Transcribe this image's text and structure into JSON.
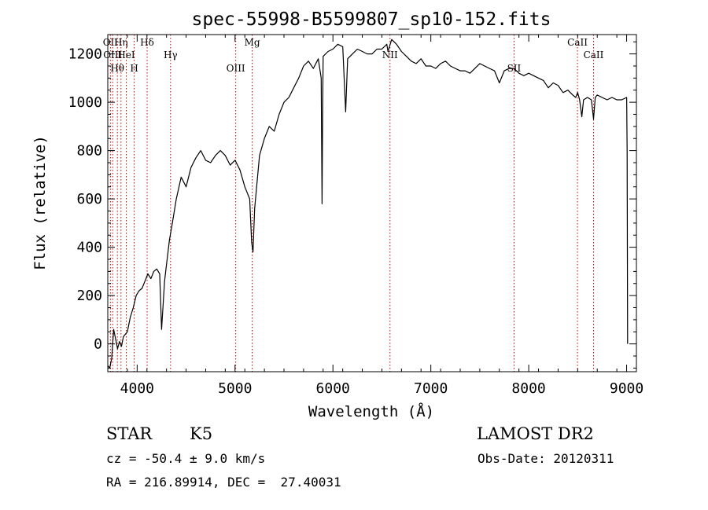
{
  "chart_data": {
    "type": "line",
    "title": "spec-55998-B5599807_sp10-152.fits",
    "xlabel": "Wavelength (Å)",
    "ylabel": "Flux (relative)",
    "xlim": [
      3700,
      9100
    ],
    "ylim": [
      -115,
      1280
    ],
    "xticks": [
      4000,
      5000,
      6000,
      7000,
      8000,
      9000
    ],
    "yticks": [
      0,
      200,
      400,
      600,
      800,
      1000,
      1200
    ],
    "grid": false,
    "series": [
      {
        "x": [
          3700,
          3720,
          3740,
          3760,
          3780,
          3800,
          3820,
          3840,
          3860,
          3880,
          3900,
          3930,
          3960,
          3990,
          4020,
          4050,
          4080,
          4110,
          4140,
          4170,
          4200,
          4230,
          4250,
          4280,
          4300,
          4330,
          4360,
          4400,
          4450,
          4500,
          4550,
          4600,
          4650,
          4700,
          4750,
          4800,
          4850,
          4900,
          4950,
          5000,
          5050,
          5100,
          5150,
          5170,
          5183,
          5200,
          5250,
          5300,
          5350,
          5400,
          5450,
          5500,
          5550,
          5600,
          5650,
          5700,
          5750,
          5800,
          5850,
          5880,
          5889,
          5895,
          5900,
          5950,
          6000,
          6050,
          6100,
          6130,
          6150,
          6200,
          6250,
          6300,
          6350,
          6400,
          6450,
          6500,
          6550,
          6562,
          6600,
          6650,
          6700,
          6750,
          6800,
          6850,
          6900,
          6950,
          7000,
          7050,
          7100,
          7150,
          7200,
          7250,
          7300,
          7350,
          7400,
          7450,
          7500,
          7550,
          7600,
          7650,
          7700,
          7750,
          7800,
          7850,
          7900,
          7950,
          8000,
          8050,
          8100,
          8150,
          8200,
          8250,
          8300,
          8350,
          8400,
          8450,
          8480,
          8500,
          8520,
          8542,
          8560,
          8600,
          8640,
          8662,
          8680,
          8700,
          8750,
          8800,
          8850,
          8900,
          8950,
          9000,
          9005,
          9010
        ],
        "y": [
          -90,
          -100,
          -60,
          60,
          20,
          -20,
          10,
          -10,
          30,
          40,
          50,
          110,
          150,
          200,
          220,
          230,
          260,
          290,
          270,
          300,
          310,
          290,
          60,
          260,
          330,
          430,
          500,
          600,
          690,
          650,
          730,
          770,
          800,
          760,
          750,
          780,
          800,
          780,
          740,
          760,
          720,
          650,
          600,
          420,
          380,
          560,
          780,
          850,
          900,
          880,
          950,
          1000,
          1020,
          1060,
          1100,
          1150,
          1170,
          1140,
          1180,
          1100,
          580,
          1000,
          1190,
          1210,
          1220,
          1240,
          1230,
          960,
          1180,
          1200,
          1220,
          1210,
          1200,
          1200,
          1220,
          1220,
          1240,
          1210,
          1260,
          1240,
          1210,
          1190,
          1170,
          1160,
          1180,
          1150,
          1150,
          1140,
          1160,
          1170,
          1150,
          1140,
          1130,
          1130,
          1120,
          1140,
          1160,
          1150,
          1140,
          1130,
          1080,
          1130,
          1140,
          1140,
          1120,
          1110,
          1120,
          1110,
          1100,
          1090,
          1060,
          1080,
          1070,
          1040,
          1050,
          1030,
          1020,
          1040,
          1010,
          940,
          1010,
          1020,
          1010,
          930,
          1020,
          1030,
          1020,
          1010,
          1020,
          1010,
          1010,
          1020,
          800,
          0
        ]
      }
    ],
    "lines": [
      {
        "x": 3727,
        "label": "OII"
      },
      {
        "x": 3750,
        "label": "OIII"
      },
      {
        "x": 3798,
        "label": "Hθ"
      },
      {
        "x": 3835,
        "label": "Hη"
      },
      {
        "x": 3889,
        "label": "HeI"
      },
      {
        "x": 3970,
        "label": "H"
      },
      {
        "x": 4102,
        "label": "Hδ"
      },
      {
        "x": 4341,
        "label": "Hγ"
      },
      {
        "x": 5007,
        "label": "OIII"
      },
      {
        "x": 5175,
        "label": "Mg"
      },
      {
        "x": 6583,
        "label": "NII"
      },
      {
        "x": 7850,
        "label": "SII"
      },
      {
        "x": 8498,
        "label": "CaII"
      },
      {
        "x": 8662,
        "label": "CaII"
      }
    ]
  },
  "info": {
    "object_class": "STAR",
    "subclass": "K5",
    "survey": "LAMOST DR2",
    "cz": "cz = -50.4 ± 9.0 km/s",
    "obs_date": "Obs-Date: 20120311",
    "radec": "RA = 216.89914, DEC =  27.40031"
  },
  "colors": {
    "spectrum": "#000000",
    "line_markers": "#cc0000",
    "axes": "#000000"
  }
}
